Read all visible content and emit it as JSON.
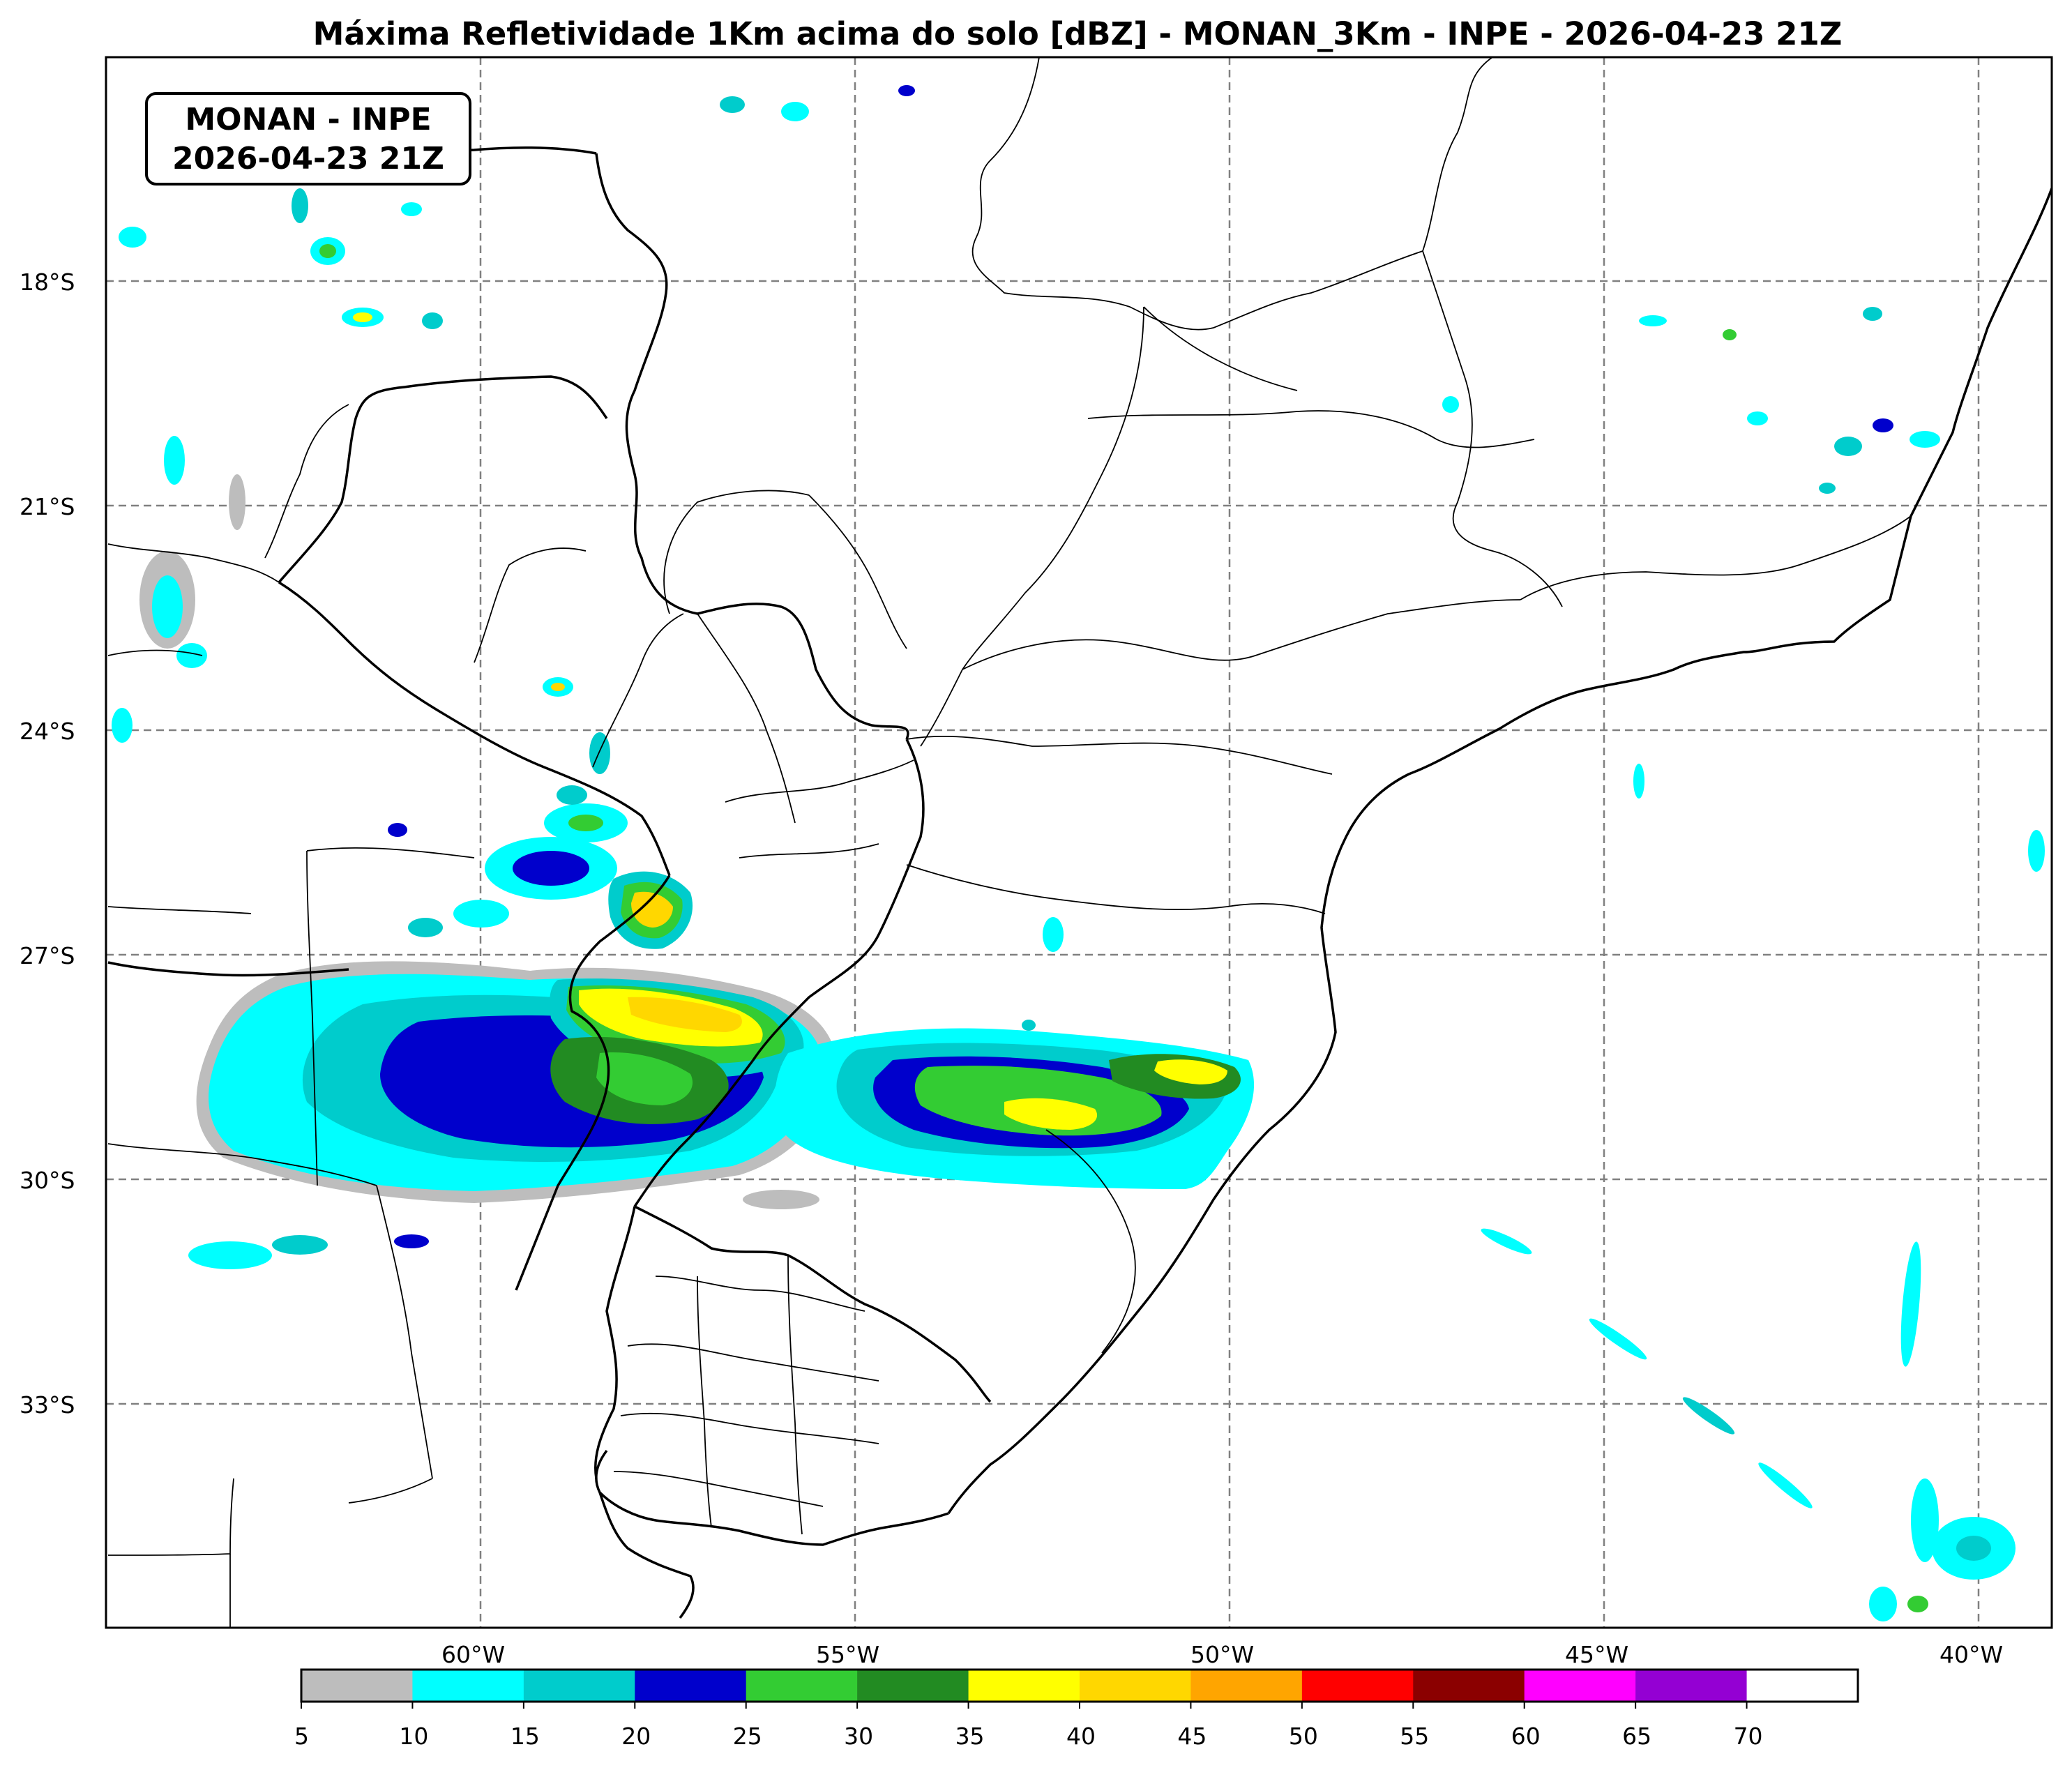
{
  "title": "Máxima Refletividade 1Km acima do solo [dBZ] - MONAN_3Km - INPE - 2026-04-23 21Z",
  "badge": {
    "line1": "MONAN - INPE",
    "line2": "2026-04-23 21Z"
  },
  "map": {
    "lon_range": [
      -65,
      -39
    ],
    "lat_range": [
      -36,
      -15
    ],
    "gridlines": "dashed",
    "lat_labels": [
      "18°S",
      "21°S",
      "24°S",
      "27°S",
      "30°S",
      "33°S"
    ],
    "lon_labels": [
      "60°W",
      "55°W",
      "50°W",
      "45°W",
      "40°W"
    ]
  },
  "colorbar": {
    "unit": "dBZ",
    "ticks": [
      "5",
      "10",
      "15",
      "20",
      "25",
      "30",
      "35",
      "40",
      "45",
      "50",
      "55",
      "60",
      "65",
      "70"
    ],
    "colors": [
      "#bdbdbd",
      "#00ffff",
      "#00cccc",
      "#0000cc",
      "#33cc33",
      "#228b22",
      "#ffff00",
      "#ffd700",
      "#ffa500",
      "#ff0000",
      "#8b0000",
      "#ff00ff",
      "#9400d3",
      "#ffffff"
    ]
  }
}
